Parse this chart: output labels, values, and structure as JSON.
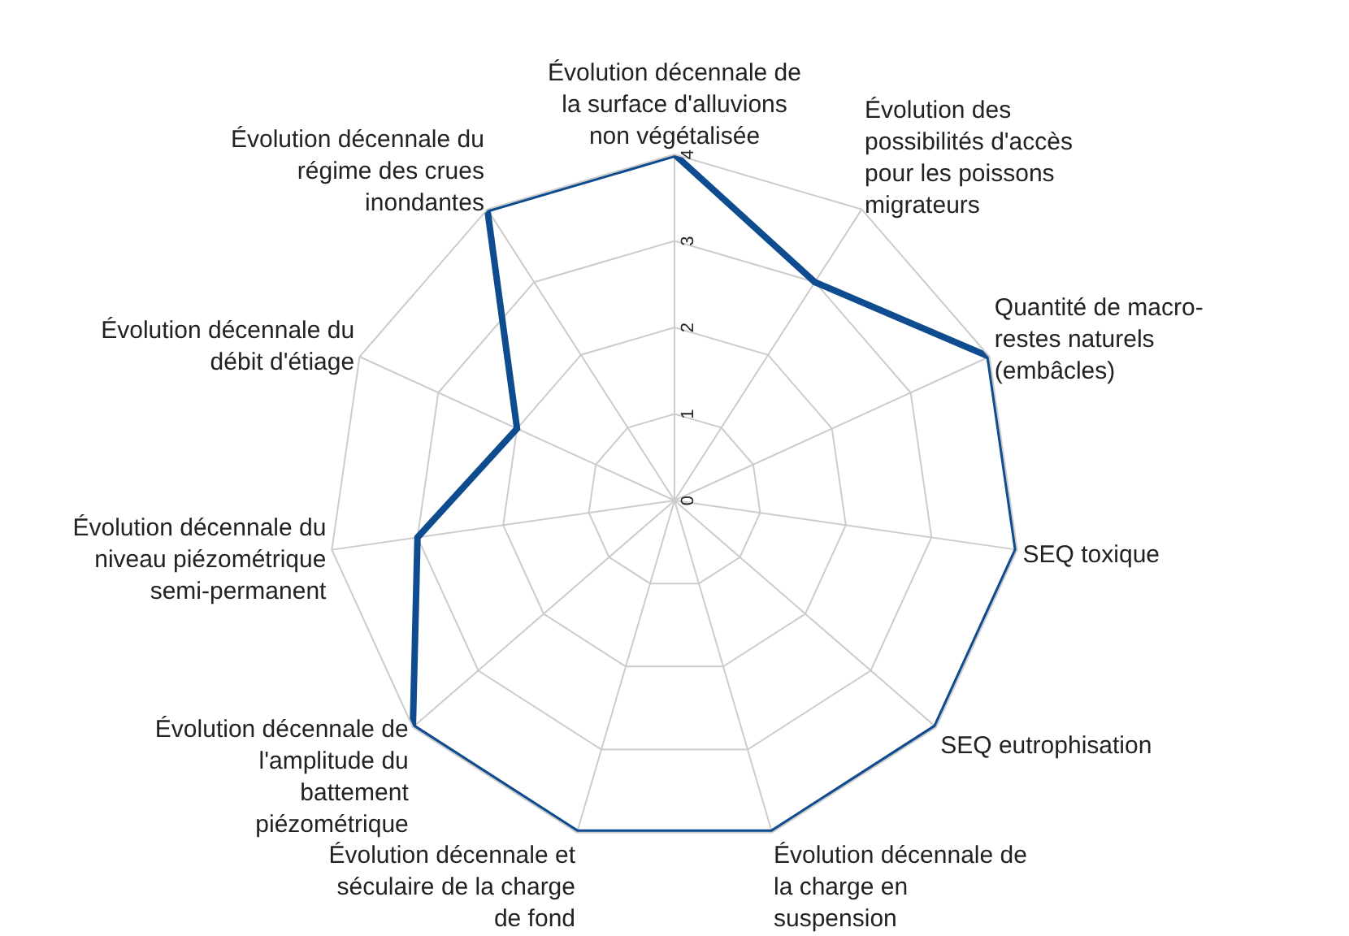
{
  "chart_data": {
    "type": "radar",
    "categories": [
      "Évolution décennale de la surface d'alluvions non végétalisée",
      "Évolution des possibilités d'accès pour les poissons migrateurs",
      "Quantité de macro-restes naturels (embâcles)",
      "SEQ toxique",
      "SEQ eutrophisation",
      "Évolution décennale de la charge en suspension",
      "Évolution décennale et séculaire de la charge de fond",
      "Évolution décennale de l'amplitude du battement piézométrique",
      "Évolution décennale du niveau piézométrique semi-permanent",
      "Évolution décennale du débit d'étiage",
      "Évolution décennale du régime des crues inondantes"
    ],
    "series": [
      {
        "color": "#0f4c8f",
        "values": [
          4,
          3,
          4,
          4,
          4,
          4,
          4,
          4,
          3,
          2,
          4
        ]
      }
    ],
    "ylim": [
      0,
      4
    ],
    "yticks": [
      0,
      1,
      2,
      3,
      4
    ],
    "grid": true,
    "legend": false,
    "marker": "none",
    "line_style": "solid"
  }
}
